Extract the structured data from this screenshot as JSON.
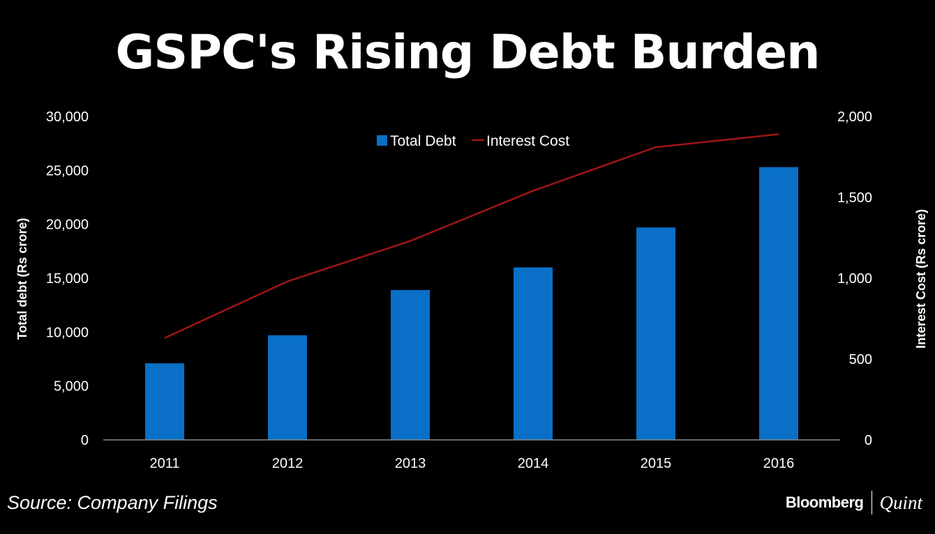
{
  "title": "GSPC's Rising Debt Burden",
  "source": "Source: Company Filings",
  "brand": {
    "primary": "Bloomberg",
    "secondary": "Quint"
  },
  "chart_data": {
    "type": "bar",
    "categories": [
      "2011",
      "2012",
      "2013",
      "2014",
      "2015",
      "2016"
    ],
    "series": [
      {
        "name": "Total Debt",
        "type": "bar",
        "axis": "left",
        "color": "#0a6fc6",
        "values": [
          7100,
          9700,
          13900,
          16000,
          19700,
          25300
        ]
      },
      {
        "name": "Interest Cost",
        "type": "line",
        "axis": "right",
        "color": "#a01515",
        "values": [
          630,
          980,
          1230,
          1540,
          1810,
          1890
        ]
      }
    ],
    "ylabel": "Total debt (Rs crore)",
    "y2label": "Interest Cost (Rs crore)",
    "ylim": [
      0,
      30000
    ],
    "y2lim": [
      0,
      2000
    ],
    "yticks": [
      "0",
      "5,000",
      "10,000",
      "15,000",
      "20,000",
      "25,000",
      "30,000"
    ],
    "y2ticks": [
      "0",
      "500",
      "1,000",
      "1,500",
      "2,000"
    ],
    "legend": "top-center",
    "grid": false
  }
}
